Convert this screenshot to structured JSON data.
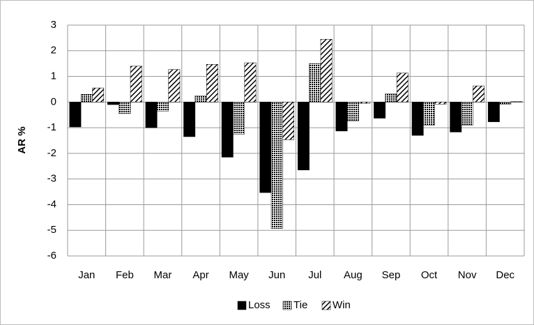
{
  "chart_data": {
    "type": "bar",
    "y_label": "AR %",
    "categories": [
      "Jan",
      "Feb",
      "Mar",
      "Apr",
      "May",
      "Jun",
      "Jul",
      "Aug",
      "Sep",
      "Oct",
      "Nov",
      "Dec"
    ],
    "series": [
      {
        "name": "Loss",
        "color": "#000000",
        "pattern": "solid",
        "values": [
          -0.97,
          -0.1,
          -1.0,
          -1.35,
          -2.15,
          -3.53,
          -2.65,
          -1.13,
          -0.63,
          -1.3,
          -1.17,
          -0.77
        ]
      },
      {
        "name": "Tie",
        "color": "#000000",
        "pattern": "dots",
        "values": [
          0.3,
          -0.45,
          -0.35,
          0.25,
          -1.25,
          -4.93,
          1.5,
          -0.73,
          0.33,
          -0.9,
          -0.9,
          -0.08
        ]
      },
      {
        "name": "Win",
        "color": "#000000",
        "pattern": "hatch",
        "values": [
          0.55,
          1.4,
          1.27,
          1.47,
          1.53,
          -1.47,
          2.45,
          -0.05,
          1.13,
          -0.08,
          0.63,
          0.02
        ]
      }
    ],
    "ylim": [
      -6,
      3
    ],
    "yticks": [
      -6,
      -5,
      -4,
      -3,
      -2,
      -1,
      0,
      1,
      2,
      3
    ],
    "grid": true,
    "legend": "bottom"
  }
}
